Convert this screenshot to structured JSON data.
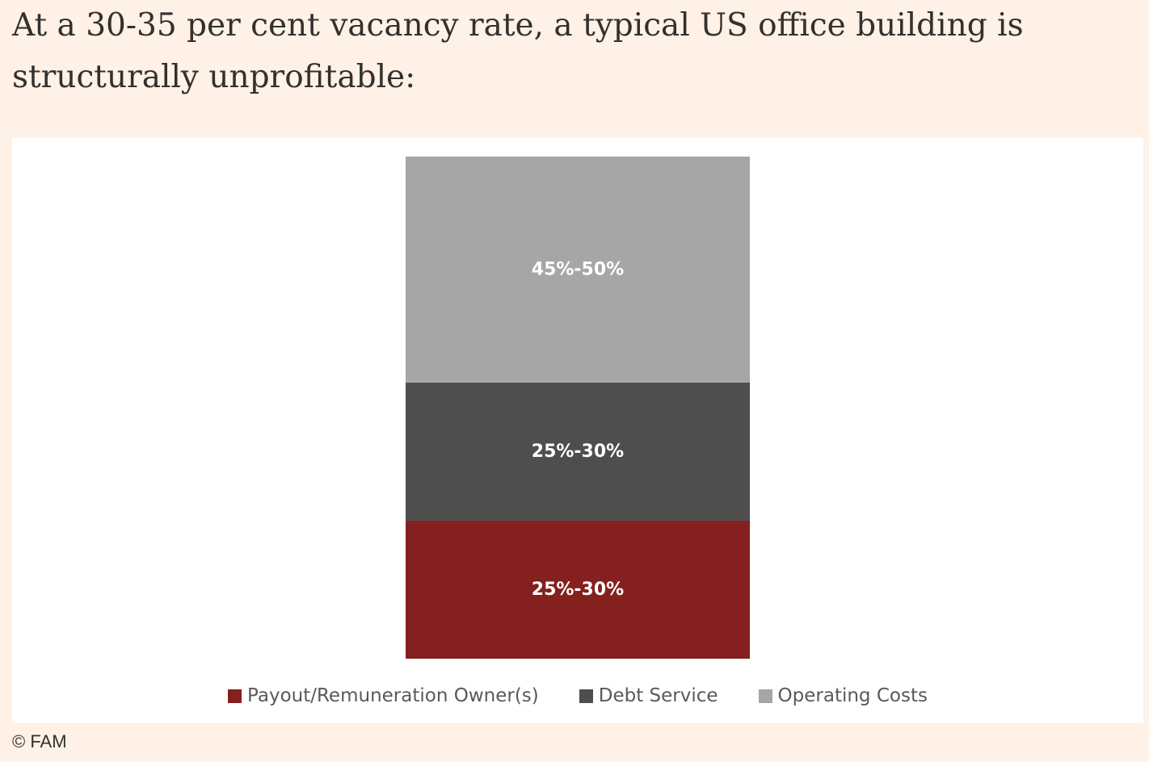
{
  "headline": "At a 30-35 per cent vacancy rate, a typical US office building is structurally unprofitable:",
  "source": "© FAM",
  "chart_data": {
    "type": "bar",
    "stacked": true,
    "categories": [
      ""
    ],
    "series": [
      {
        "name": "Payout/Remuneration Owner(s)",
        "label": "25%-30%",
        "values": [
          27.5
        ],
        "color": "#84201d"
      },
      {
        "name": "Debt Service",
        "label": "25%-30%",
        "values": [
          27.5
        ],
        "color": "#4f4e4e"
      },
      {
        "name": "Operating Costs",
        "label": "45%-50%",
        "values": [
          45
        ],
        "color": "#a6a6a6"
      }
    ],
    "legend_position": "bottom",
    "grid": false,
    "axes_visible": false
  }
}
